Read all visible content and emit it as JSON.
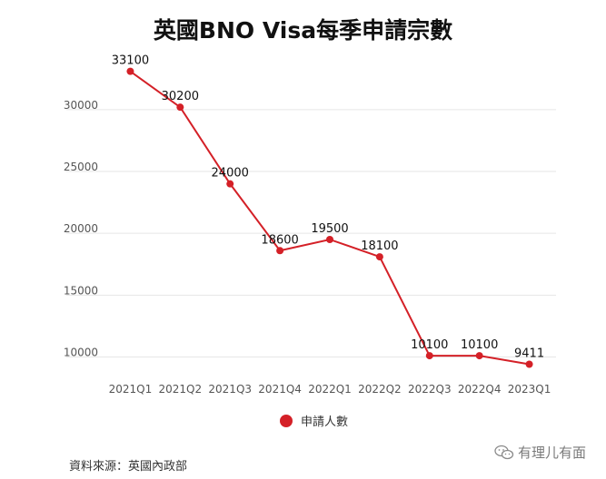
{
  "chart_data": {
    "type": "line",
    "title": "英國BNO Visa每季申請宗數",
    "xlabel": "",
    "ylabel": "",
    "categories": [
      "2021Q1",
      "2021Q2",
      "2021Q3",
      "2021Q4",
      "2022Q1",
      "2022Q2",
      "2022Q3",
      "2022Q4",
      "2023Q1"
    ],
    "series": [
      {
        "name": "申請人數",
        "values": [
          33100,
          30200,
          24000,
          18600,
          19500,
          18100,
          10100,
          10100,
          9411
        ],
        "labels": [
          "33100",
          "30200",
          "24000",
          "18600",
          "19500",
          "18100",
          "10100",
          "10100",
          "9411"
        ],
        "color": "#d42027"
      }
    ],
    "yticks": [
      "10000",
      "15000",
      "20000",
      "25000",
      "30000"
    ],
    "ylim": [
      8200,
      34100
    ],
    "grid": true,
    "legend_position": "bottom",
    "gridline_color": "#e6e6e6"
  },
  "footer": {
    "source": "資料來源：英國內政部",
    "watermark": "有理儿有面"
  }
}
